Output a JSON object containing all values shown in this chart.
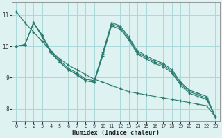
{
  "bg_color": "#dff2f2",
  "grid_color": "#aad8d8",
  "line_color": "#2a7c6f",
  "xlabel": "Humidex (Indice chaleur)",
  "ylim": [
    7.6,
    11.4
  ],
  "xlim": [
    -0.5,
    23.5
  ],
  "yticks": [
    8,
    9,
    10,
    11
  ],
  "xticks": [
    0,
    1,
    2,
    3,
    4,
    5,
    6,
    7,
    8,
    9,
    10,
    11,
    12,
    13,
    14,
    15,
    16,
    17,
    18,
    19,
    20,
    21,
    22,
    23
  ],
  "figsize": [
    3.2,
    2.0
  ],
  "dpi": 100,
  "lines": [
    {
      "x": [
        0,
        1,
        2,
        3,
        4,
        5,
        6,
        7,
        8,
        9,
        10,
        11,
        12,
        13,
        14,
        15,
        16,
        17,
        18,
        19,
        20,
        21,
        22,
        23
      ],
      "y": [
        11.1,
        10.75,
        10.45,
        10.15,
        9.85,
        9.6,
        9.4,
        9.25,
        9.1,
        8.95,
        8.85,
        8.75,
        8.65,
        8.55,
        8.5,
        8.45,
        8.4,
        8.35,
        8.3,
        8.25,
        8.2,
        8.15,
        8.1,
        7.75
      ]
    },
    {
      "x": [
        0,
        1,
        2,
        3,
        4,
        5,
        6,
        7,
        8,
        9,
        10,
        11,
        12,
        13,
        14,
        15,
        16,
        17,
        18,
        19,
        20,
        21,
        22,
        23
      ],
      "y": [
        10.0,
        10.05,
        10.75,
        10.3,
        9.8,
        9.5,
        9.25,
        9.1,
        8.9,
        8.85,
        9.7,
        10.65,
        10.55,
        10.2,
        9.75,
        9.6,
        9.45,
        9.35,
        9.15,
        8.75,
        8.5,
        8.4,
        8.3,
        7.75
      ]
    },
    {
      "x": [
        0,
        1,
        2,
        3,
        4,
        5,
        6,
        7,
        8,
        9,
        10,
        11,
        12,
        13,
        14,
        15,
        16,
        17,
        18,
        19,
        20,
        21,
        22,
        23
      ],
      "y": [
        10.0,
        10.05,
        10.75,
        10.3,
        9.8,
        9.5,
        9.25,
        9.1,
        8.9,
        8.85,
        9.75,
        10.7,
        10.6,
        10.25,
        9.8,
        9.65,
        9.5,
        9.4,
        9.2,
        8.8,
        8.55,
        8.45,
        8.35,
        7.75
      ]
    },
    {
      "x": [
        0,
        1,
        2,
        3,
        4,
        5,
        6,
        7,
        8,
        9,
        10,
        11,
        12,
        13,
        14,
        15,
        16,
        17,
        18,
        19,
        20,
        21,
        22,
        23
      ],
      "y": [
        10.0,
        10.05,
        10.75,
        10.35,
        9.85,
        9.55,
        9.3,
        9.15,
        8.95,
        8.9,
        9.8,
        10.75,
        10.65,
        10.3,
        9.85,
        9.7,
        9.55,
        9.45,
        9.25,
        8.85,
        8.6,
        8.5,
        8.4,
        7.75
      ]
    }
  ]
}
